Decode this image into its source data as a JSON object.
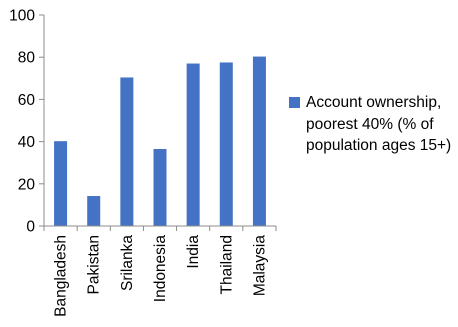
{
  "chart_data": {
    "type": "bar",
    "categories": [
      "Bangladesh",
      "Pakistan",
      "Srilanka",
      "Indonesia",
      "India",
      "Thailand",
      "Malaysia"
    ],
    "series": [
      {
        "name": "Account ownership, poorest 40% (% of population ages 15+)",
        "values": [
          40.2,
          14.2,
          70.4,
          36.5,
          77.0,
          77.5,
          80.3
        ],
        "color": "#4472C4"
      }
    ],
    "yticks": [
      0,
      20,
      40,
      60,
      80,
      100
    ],
    "ylim": [
      0,
      100
    ],
    "grid": false,
    "legend_position": "right"
  }
}
